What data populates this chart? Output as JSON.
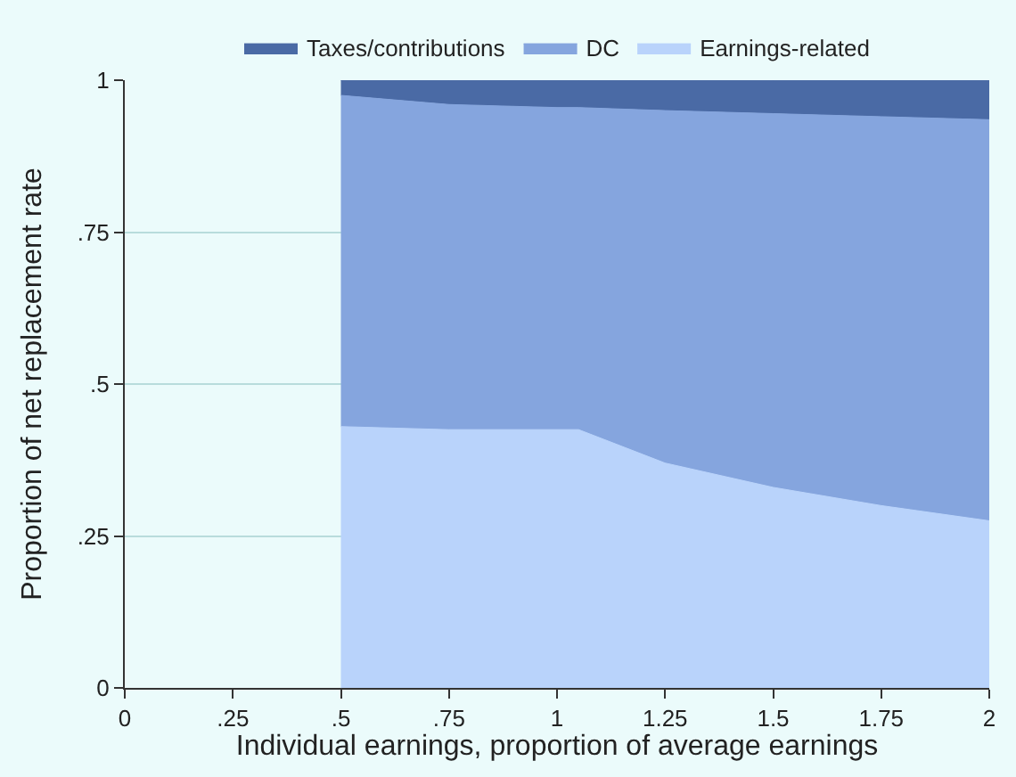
{
  "chart_data": {
    "type": "area",
    "stacked": true,
    "xlabel": "Individual earnings, proportion of average earnings",
    "ylabel": "Proportion of net replacement rate",
    "x": [
      0.5,
      0.75,
      1,
      1.05,
      1.25,
      1.5,
      1.75,
      2
    ],
    "series": [
      {
        "name": "Earnings-related",
        "color": "#b9d3fb",
        "values": [
          0.43,
          0.425,
          0.425,
          0.425,
          0.37,
          0.33,
          0.3,
          0.275
        ]
      },
      {
        "name": "DC",
        "color": "#85a5de",
        "values": [
          0.545,
          0.535,
          0.53,
          0.53,
          0.58,
          0.615,
          0.64,
          0.66
        ]
      },
      {
        "name": "Taxes/contributions",
        "color": "#4a6aa5",
        "values": [
          0.025,
          0.04,
          0.045,
          0.045,
          0.05,
          0.055,
          0.06,
          0.065
        ]
      }
    ],
    "xlim": [
      0,
      2
    ],
    "ylim": [
      0,
      1
    ],
    "xticks": [
      0,
      {
        "value": 0.25,
        "label": ".25"
      },
      {
        "value": 0.5,
        "label": ".5"
      },
      {
        "value": 0.75,
        "label": ".75"
      },
      1,
      {
        "value": 1.25,
        "label": "1.25"
      },
      {
        "value": 1.5,
        "label": "1.5"
      },
      {
        "value": 1.75,
        "label": "1.75"
      },
      2
    ],
    "yticks": [
      0,
      {
        "value": 0.25,
        "label": ".25"
      },
      {
        "value": 0.5,
        "label": ".5"
      },
      {
        "value": 0.75,
        "label": ".75"
      },
      1
    ],
    "grid": "y",
    "legend": "top"
  }
}
